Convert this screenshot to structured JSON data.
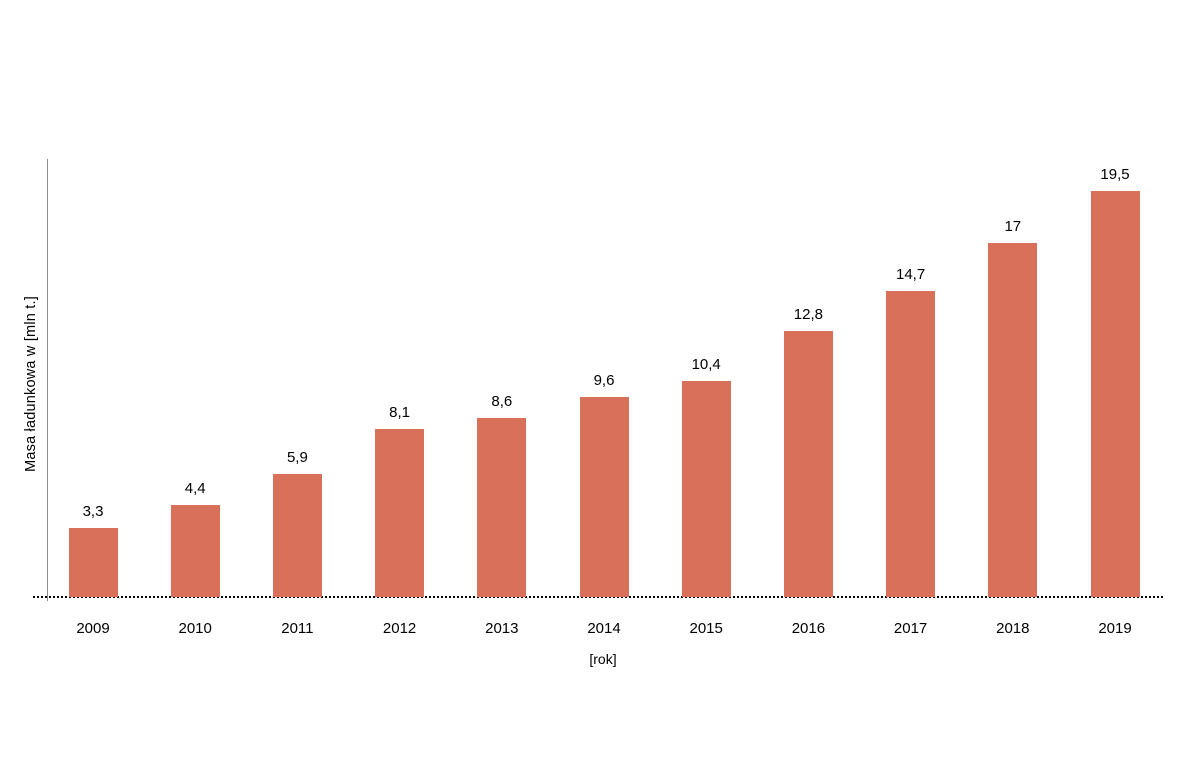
{
  "chart_data": {
    "type": "bar",
    "categories": [
      "2009",
      "2010",
      "2011",
      "2012",
      "2013",
      "2014",
      "2015",
      "2016",
      "2017",
      "2018",
      "2019"
    ],
    "values": [
      3.3,
      4.4,
      5.9,
      8.1,
      8.6,
      9.6,
      10.4,
      12.8,
      14.7,
      17,
      19.5
    ],
    "value_labels": [
      "3,3",
      "4,4",
      "5,9",
      "8,1",
      "8,6",
      "9,6",
      "10,4",
      "12,8",
      "14,7",
      "17",
      "19,5"
    ],
    "xlabel": "[rok]",
    "ylabel": "Masa ładunkowa w [mln t.]",
    "ylim": [
      0,
      21
    ],
    "grid": false,
    "legend": "none",
    "decimal_separator": ",",
    "bar_color": "#d8705a",
    "axis_line_color": "#8c8c8c",
    "baseline_color": "#000000",
    "baseline_style": "dotted",
    "text_color": "#000000"
  }
}
